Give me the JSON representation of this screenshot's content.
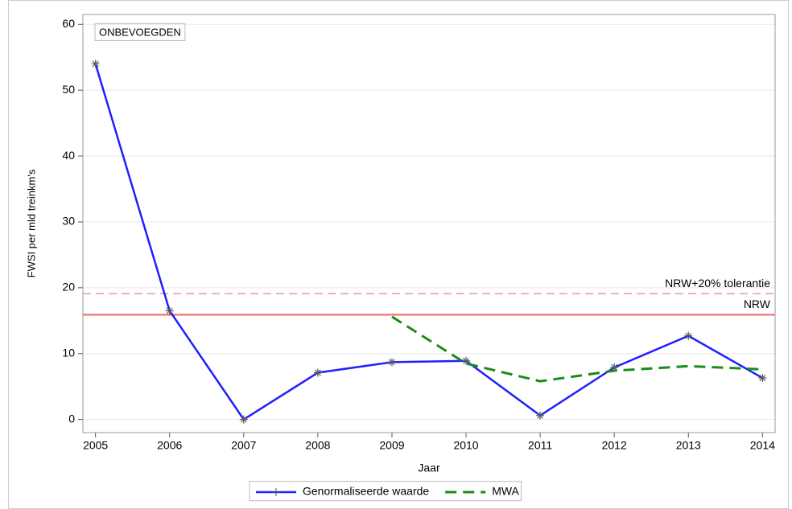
{
  "chart_data": {
    "type": "line",
    "annotation": "ONBEVOEGDEN",
    "x_label": "Jaar",
    "y_label": "FWSI per mld treinkm's",
    "x": [
      2005,
      2006,
      2007,
      2008,
      2009,
      2010,
      2011,
      2012,
      2013,
      2014
    ],
    "series": [
      {
        "name": "Genormaliseerde waarde",
        "color": "#1f1fff",
        "dash": false,
        "marker": true,
        "values": [
          54,
          16.5,
          0,
          7.1,
          8.7,
          8.9,
          0.6,
          7.9,
          12.7,
          6.3
        ]
      },
      {
        "name": "MWA",
        "color": "#1a8c1a",
        "dash": true,
        "marker": false,
        "values": [
          null,
          null,
          null,
          null,
          15.6,
          8.5,
          5.8,
          7.4,
          8.1,
          7.6
        ]
      }
    ],
    "reference_lines": [
      {
        "label": "NRW+20% tolerantie",
        "value": 19.1,
        "color": "#f08080",
        "dash": true
      },
      {
        "label": "NRW",
        "value": 15.9,
        "color": "#f08080",
        "dash": false
      }
    ],
    "xlim": [
      2004.83,
      2014.17
    ],
    "ylim": [
      -2,
      61.5
    ],
    "xticks": [
      2005,
      2006,
      2007,
      2008,
      2009,
      2010,
      2011,
      2012,
      2013,
      2014
    ],
    "yticks": [
      0,
      10,
      20,
      30,
      40,
      50,
      60
    ],
    "grid": true,
    "legend": "bottom"
  }
}
